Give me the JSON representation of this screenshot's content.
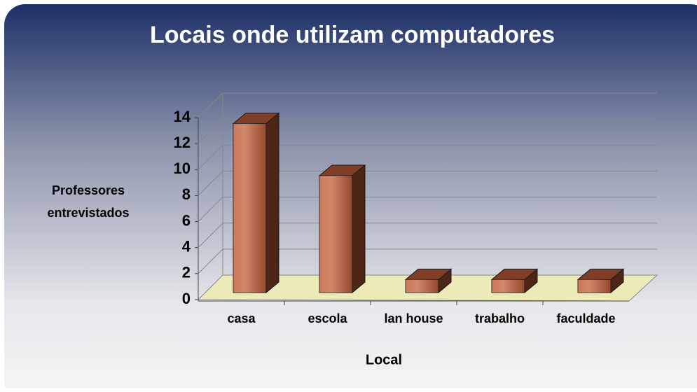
{
  "chart_data": {
    "type": "bar3d",
    "title": "Locais onde utilizam computadores",
    "categories": [
      "casa",
      "escola",
      "lan house",
      "trabalho",
      "faculdade"
    ],
    "values": [
      13,
      9,
      1,
      1,
      1
    ],
    "color": "#c4603a",
    "ylim": [
      0,
      14
    ],
    "yticks": [
      0,
      2,
      4,
      6,
      8,
      10,
      12,
      14
    ],
    "grid": true,
    "y_label": [
      "Professores",
      "entrevistados"
    ],
    "x_label": "Local"
  }
}
